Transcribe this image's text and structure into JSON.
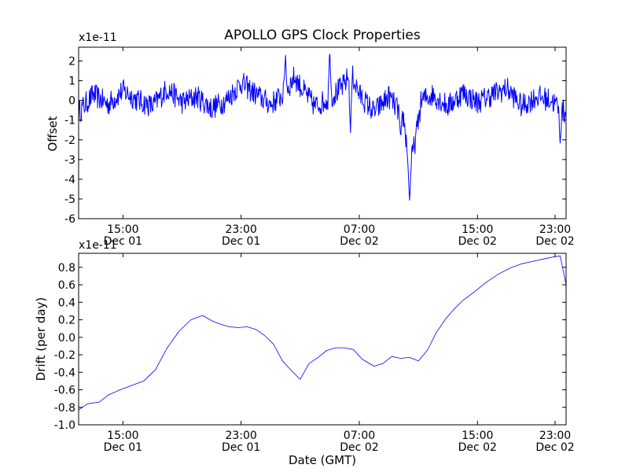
{
  "figure": {
    "title": "APOLLO GPS Clock Properties",
    "xlabel": "Date (GMT)"
  },
  "chart_data": [
    {
      "type": "line",
      "name": "offset-panel",
      "ylabel": "Offset",
      "y_multiplier": "x1e-11",
      "ylim": [
        -6,
        2.7
      ],
      "yticks": [
        "-6",
        "-5",
        "-4",
        "-3",
        "-2",
        "-1",
        "0",
        "1",
        "2"
      ],
      "xlim_hours": [
        0,
        16.5
      ],
      "xticks": [
        {
          "at": 1.5,
          "time": "15:00",
          "date": "Dec 01"
        },
        {
          "at": 5.5,
          "time": "23:00",
          "date": "Dec 01"
        },
        {
          "at": 9.5,
          "time": "07:00",
          "date": "Dec 02"
        },
        {
          "at": 13.5,
          "time": "15:00",
          "date": "Dec 02"
        },
        {
          "at": 17.5,
          "time": "23:00",
          "date": "Dec 02"
        }
      ],
      "color": "#0000ff",
      "x": [
        0,
        0.5,
        1.0,
        1.5,
        2.0,
        2.5,
        3.0,
        3.5,
        4.0,
        4.5,
        5.0,
        5.5,
        6.0,
        6.5,
        7.0,
        7.3,
        7.6,
        8.0,
        8.5,
        9.0,
        9.2,
        9.5,
        10.0,
        10.5,
        11.0,
        11.2,
        11.4,
        11.6,
        12.0,
        12.5,
        13.0,
        13.5,
        14.0,
        14.5,
        15.0,
        15.5,
        16.0,
        16.5
      ],
      "y": [
        -0.6,
        0.3,
        -0.2,
        0.5,
        0.0,
        -0.3,
        0.6,
        -0.1,
        0.2,
        -0.4,
        0.0,
        0.9,
        0.3,
        -0.2,
        0.4,
        1.2,
        0.5,
        -0.3,
        0.1,
        0.8,
        1.5,
        0.3,
        -0.6,
        0.2,
        -0.9,
        -3.5,
        -2.0,
        0.0,
        0.3,
        -0.3,
        0.4,
        -0.1,
        0.3,
        0.6,
        -0.3,
        0.2,
        0.0,
        -0.7
      ],
      "extremes": [
        {
          "x": 7.0,
          "y": 2.4
        },
        {
          "x": 8.5,
          "y": 2.7
        },
        {
          "x": 9.2,
          "y": -1.8
        },
        {
          "x": 10.9,
          "y": -2.0
        },
        {
          "x": 11.2,
          "y": -5.1
        },
        {
          "x": 16.3,
          "y": -2.2
        }
      ]
    },
    {
      "type": "line",
      "name": "drift-panel",
      "ylabel": "Drift (per day)",
      "y_multiplier": "x1e-11",
      "ylim": [
        -1.0,
        0.96
      ],
      "yticks": [
        "-1.0",
        "-0.8",
        "-0.6",
        "-0.4",
        "-0.2",
        "0.0",
        "0.2",
        "0.4",
        "0.6",
        "0.8"
      ],
      "xlim_hours": [
        0,
        16.5
      ],
      "xticks": [
        {
          "at": 1.5,
          "time": "15:00",
          "date": "Dec 01"
        },
        {
          "at": 5.5,
          "time": "23:00",
          "date": "Dec 01"
        },
        {
          "at": 9.5,
          "time": "07:00",
          "date": "Dec 02"
        },
        {
          "at": 13.5,
          "time": "15:00",
          "date": "Dec 02"
        },
        {
          "at": 17.5,
          "time": "23:00",
          "date": "Dec 02"
        }
      ],
      "color": "#0000ff",
      "x": [
        0,
        0.3,
        0.7,
        1.0,
        1.4,
        1.8,
        2.2,
        2.6,
        3.0,
        3.4,
        3.8,
        4.2,
        4.5,
        4.8,
        5.1,
        5.4,
        5.7,
        6.0,
        6.3,
        6.6,
        6.9,
        7.2,
        7.5,
        7.8,
        8.1,
        8.4,
        8.7,
        9.0,
        9.3,
        9.6,
        10.0,
        10.3,
        10.6,
        10.9,
        11.2,
        11.5,
        11.8,
        12.1,
        12.4,
        12.7,
        13.0,
        13.4,
        13.8,
        14.2,
        14.6,
        15.0,
        15.4,
        15.8,
        16.1,
        16.3,
        16.5
      ],
      "y": [
        -0.83,
        -0.76,
        -0.74,
        -0.66,
        -0.6,
        -0.55,
        -0.5,
        -0.37,
        -0.12,
        0.07,
        0.2,
        0.25,
        0.19,
        0.15,
        0.12,
        0.11,
        0.12,
        0.09,
        0.02,
        -0.08,
        -0.27,
        -0.38,
        -0.48,
        -0.3,
        -0.23,
        -0.15,
        -0.12,
        -0.12,
        -0.14,
        -0.25,
        -0.33,
        -0.3,
        -0.22,
        -0.24,
        -0.23,
        -0.27,
        -0.15,
        0.05,
        0.2,
        0.32,
        0.42,
        0.52,
        0.63,
        0.72,
        0.79,
        0.84,
        0.87,
        0.9,
        0.92,
        0.93,
        0.6
      ]
    }
  ]
}
